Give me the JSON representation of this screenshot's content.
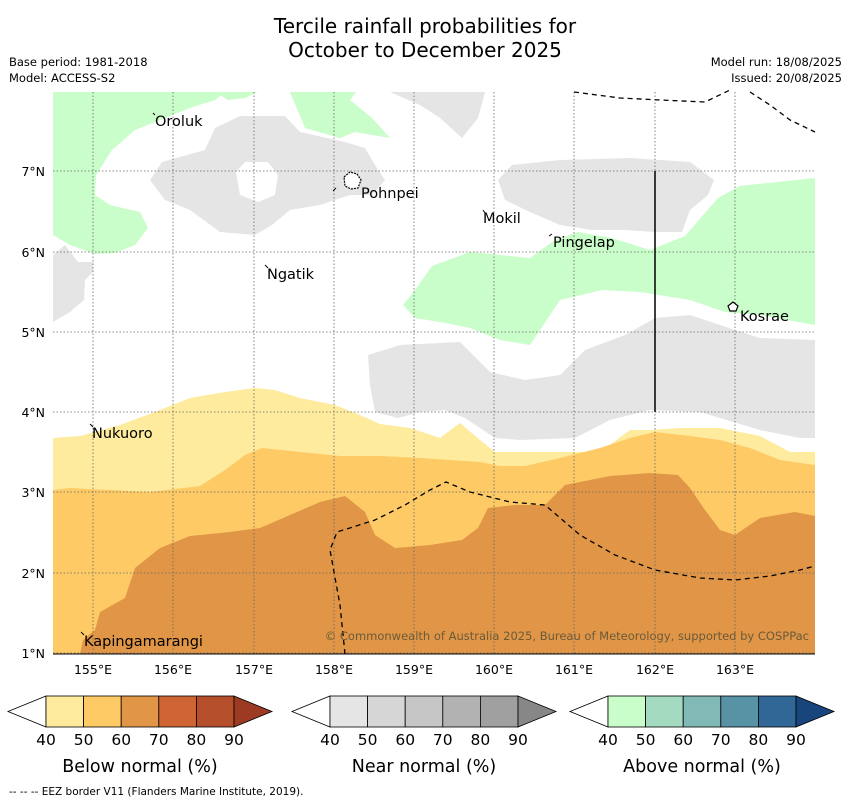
{
  "title": {
    "line1": "Tercile rainfall probabilities for",
    "line2": "October to December 2025"
  },
  "meta": {
    "base_period": "Base period: 1981-2018",
    "model": "Model: ACCESS-S2",
    "model_run": "Model run: 18/08/2025",
    "issued": "Issued: 20/08/2025"
  },
  "map": {
    "lon_ticks": [
      "155°E",
      "156°E",
      "157°E",
      "158°E",
      "159°E",
      "160°E",
      "161°E",
      "162°E",
      "163°E"
    ],
    "lat_ticks": [
      "1°N",
      "2°N",
      "3°N",
      "4°N",
      "5°N",
      "6°N",
      "7°N"
    ],
    "places": [
      "Oroluk",
      "Pohnpei",
      "Mokil",
      "Pingelap",
      "Ngatik",
      "Kosrae",
      "Nukuoro",
      "Kapingamarangi"
    ],
    "copyright": "© Commonwealth of Australia 2025, Bureau of Meteorology, supported by COSPPac"
  },
  "legends": [
    {
      "title": "Below normal (%)",
      "ticks": [
        "40",
        "50",
        "60",
        "70",
        "80",
        "90"
      ],
      "colors": [
        "#ffffff",
        "#feeb9e",
        "#fdca66",
        "#e09646",
        "#cf6535",
        "#b44e2b",
        "#9c3a23"
      ]
    },
    {
      "title": "Near normal (%)",
      "ticks": [
        "40",
        "50",
        "60",
        "70",
        "80",
        "90"
      ],
      "colors": [
        "#ffffff",
        "#e5e5e5",
        "#d6d6d6",
        "#c6c6c6",
        "#b2b2b2",
        "#a0a0a0",
        "#878787"
      ]
    },
    {
      "title": "Above normal (%)",
      "ticks": [
        "40",
        "50",
        "60",
        "70",
        "80",
        "90"
      ],
      "colors": [
        "#ffffff",
        "#c9fdc9",
        "#a4dbc0",
        "#80b9b5",
        "#5792a5",
        "#306797",
        "#17457c"
      ]
    }
  ],
  "footer": {
    "eez_note": "--  --  -- EEZ border V11 (Flanders Marine Institute, 2019)."
  }
}
